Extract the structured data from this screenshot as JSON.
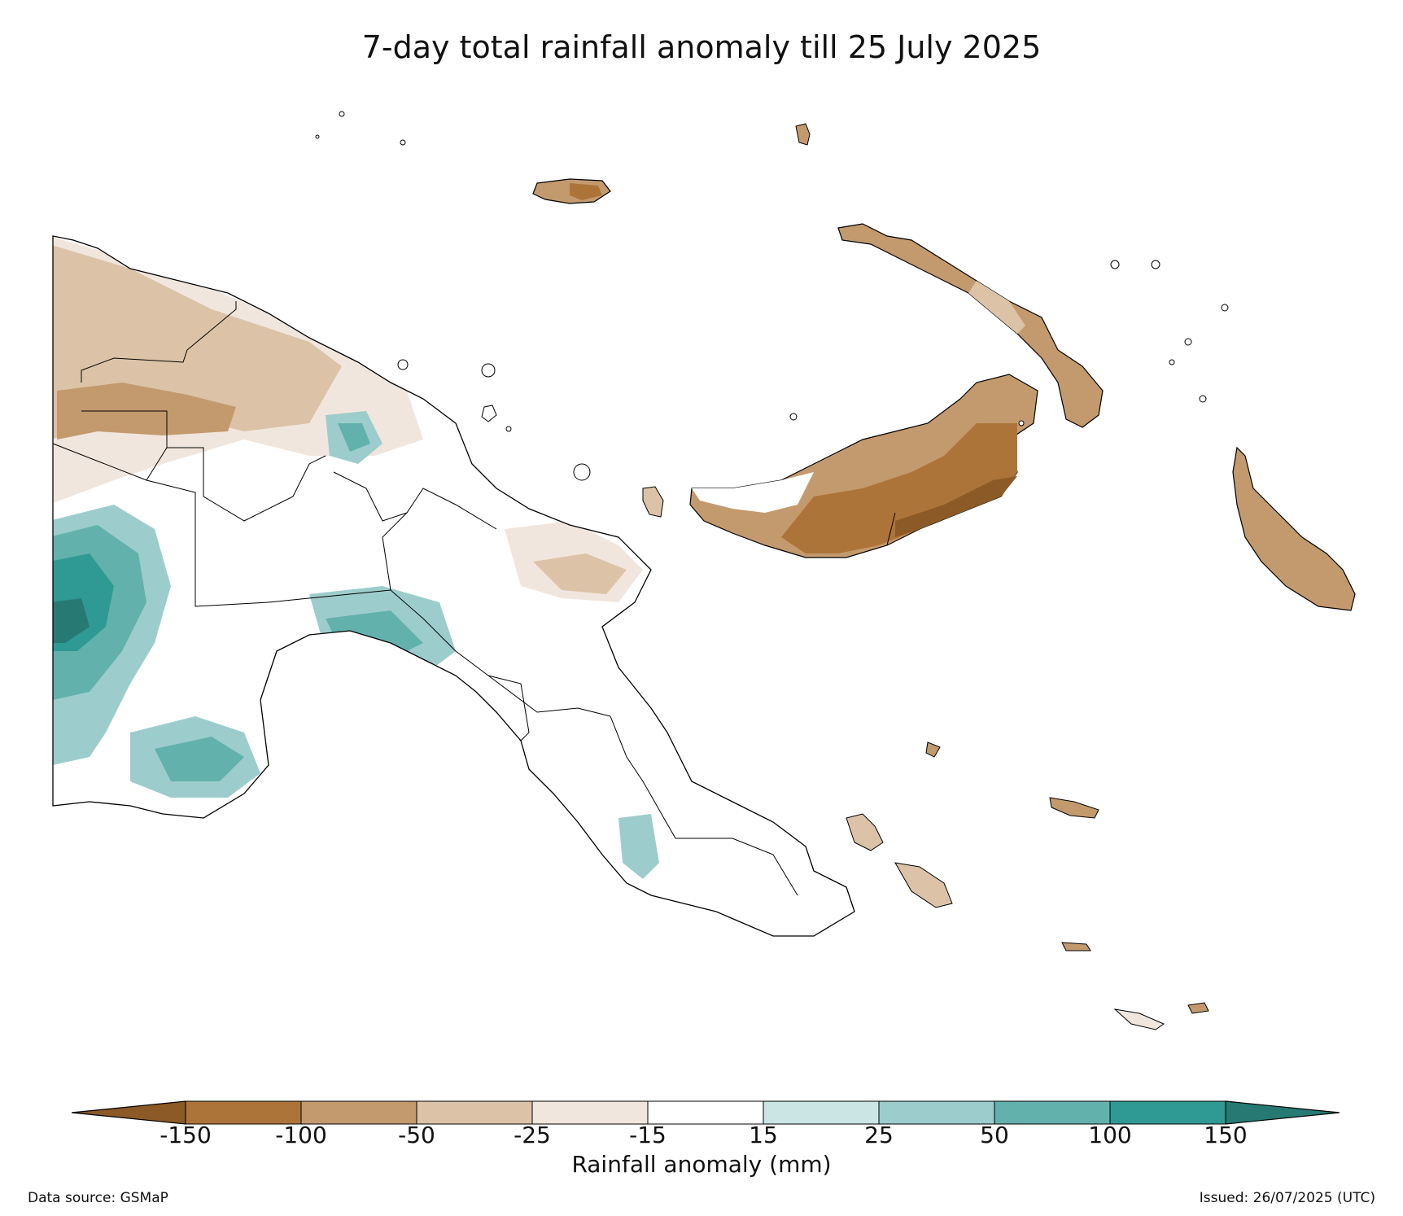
{
  "title": "7-day total rainfall anomaly till 25 July 2025",
  "legend": {
    "title": "Rainfall anomaly (mm)",
    "tick_labels": [
      "-150",
      "-100",
      "-50",
      "-25",
      "-15",
      "15",
      "25",
      "50",
      "100",
      "150"
    ],
    "colors": {
      "below_min": "#8c5a26",
      "bins": [
        "#ad7439",
        "#c39a6e",
        "#dcc3a7",
        "#f1e6dd",
        "#ffffff",
        "#cae5e4",
        "#9ccdcc",
        "#62b1ad",
        "#2f9a93"
      ],
      "above_max": "#267a73"
    }
  },
  "footer": {
    "source": "Data source: GSMaP",
    "issued": "Issued: 26/07/2025 (UTC)"
  }
}
